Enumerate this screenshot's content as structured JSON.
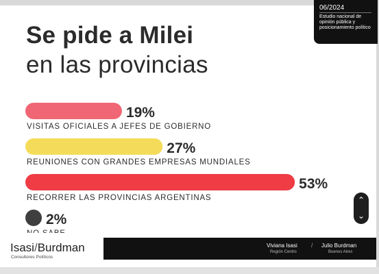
{
  "header": {
    "date": "06/2024",
    "description": "Estudio nacional de opinión pública y posicionamiento político"
  },
  "title": {
    "line1": "Se pide a Milei",
    "line2": "en las provincias"
  },
  "colors": {
    "red": "#ef3c45",
    "pink": "#f06674",
    "yellow": "#f4dc5a",
    "dark": "#3f3f3f",
    "text": "#2b2b2b"
  },
  "chart_data": {
    "type": "bar",
    "orientation": "horizontal",
    "categories": [
      "VISITAS OFICIALES A JEFES DE GOBIERNO",
      "REUNIONES CON GRANDES EMPRESAS MUNDIALES",
      "RECORRER LAS PROVINCIAS ARGENTINAS",
      "NO SABE"
    ],
    "values": [
      19,
      27,
      53,
      2
    ],
    "value_labels": [
      "19%",
      "27%",
      "53%",
      "2%"
    ],
    "bar_colors": [
      "#f06674",
      "#f4dc5a",
      "#ef3c45",
      "#3f3f3f"
    ],
    "xlim": [
      0,
      55
    ],
    "grid": false,
    "legend": "none"
  },
  "scroll": {
    "up_icon": "chevron-up-icon",
    "down_icon": "chevron-down-icon"
  },
  "footer": {
    "logo_left": "Isasi",
    "logo_slash": "/",
    "logo_right": "Burdman",
    "logo_sub": "Consultores Políticos",
    "person1_name": "Viviana Isasi",
    "person1_role": "Región Centro",
    "separator": "/",
    "person2_name": "Julio Burdman",
    "person2_role": "Buenos Aires"
  }
}
